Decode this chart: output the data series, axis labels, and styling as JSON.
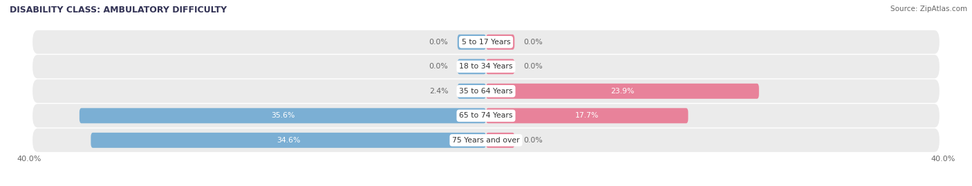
{
  "title": "DISABILITY CLASS: AMBULATORY DIFFICULTY",
  "source": "Source: ZipAtlas.com",
  "categories": [
    "5 to 17 Years",
    "18 to 34 Years",
    "35 to 64 Years",
    "65 to 74 Years",
    "75 Years and over"
  ],
  "male_values": [
    0.0,
    0.0,
    2.4,
    35.6,
    34.6
  ],
  "female_values": [
    0.0,
    0.0,
    23.9,
    17.7,
    0.0
  ],
  "x_max": 40.0,
  "male_color": "#7bafd4",
  "female_color": "#e8829a",
  "row_bg_color": "#ebebeb",
  "row_bg_color_alt": "#f5f5f5",
  "title_color": "#333355",
  "text_color": "#333333",
  "label_inside_color": "#ffffff",
  "label_outside_color": "#666666",
  "bar_height": 0.62,
  "min_bar_width": 2.5,
  "figsize": [
    14.06,
    2.69
  ],
  "dpi": 100
}
